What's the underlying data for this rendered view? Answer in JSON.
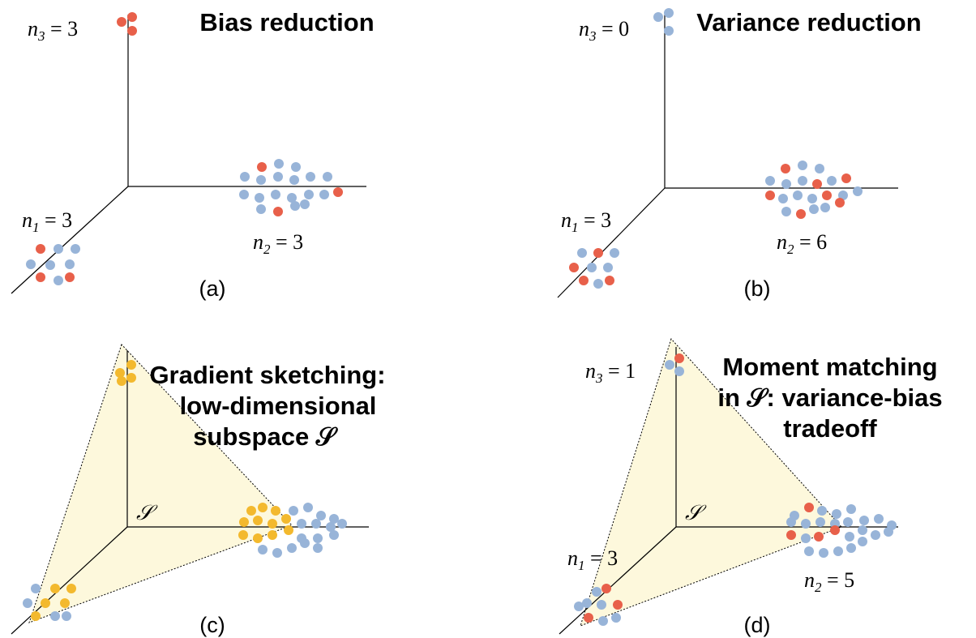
{
  "colors": {
    "blue": "#98b4d8",
    "red": "#e8604a",
    "yellow": "#f3b92e",
    "plane_fill": "#fdf8dc"
  },
  "panels": [
    {
      "id": "a",
      "caption": "(a)",
      "title_lines": [
        "Bias reduction"
      ],
      "labels": {
        "n1": "n",
        "n1_sub": "1",
        "n1_val": " = 3",
        "n2": "n",
        "n2_sub": "2",
        "n2_val": " = 3",
        "n3": "n",
        "n3_sub": "3",
        "n3_val": " = 3"
      },
      "clusters": {
        "x_axis_total": 18,
        "x_axis_red": 3,
        "bottom_total": 8,
        "bottom_red": 3,
        "top_total": 3,
        "top_red": 3
      }
    },
    {
      "id": "b",
      "caption": "(b)",
      "title_lines": [
        "Variance reduction"
      ],
      "labels": {
        "n1": "n",
        "n1_sub": "1",
        "n1_val": " = 3",
        "n2": "n",
        "n2_sub": "2",
        "n2_val": " = 6",
        "n3": "n",
        "n3_sub": "3",
        "n3_val": " = 0"
      },
      "clusters": {
        "x_axis_total": 18,
        "x_axis_red": 6,
        "bottom_total": 8,
        "bottom_red": 3,
        "top_total": 3,
        "top_red": 0
      }
    },
    {
      "id": "c",
      "caption": "(c)",
      "title_lines": [
        "Gradient sketching:",
        "low-dimensional",
        "subspace 𝒮"
      ],
      "subspace_label": "𝒮",
      "clusters": {
        "x_axis_total": 22,
        "x_axis_yellow": 10,
        "bottom_total": 9,
        "bottom_yellow": 5,
        "top_total": 4,
        "top_yellow": 4
      }
    },
    {
      "id": "d",
      "caption": "(d)",
      "title_lines": [
        "Moment matching",
        "in 𝒮: variance-bias",
        "tradeoff"
      ],
      "subspace_label": "𝒮",
      "labels": {
        "n1": "n",
        "n1_sub": "1",
        "n1_val": " = 3",
        "n2": "n",
        "n2_sub": "2",
        "n2_val": " = 5",
        "n3": "n",
        "n3_sub": "3",
        "n3_val": " = 1"
      },
      "clusters": {
        "x_axis_total": 22,
        "x_axis_red": 5,
        "bottom_total": 9,
        "bottom_red": 3,
        "top_total": 3,
        "top_red": 1
      }
    }
  ]
}
